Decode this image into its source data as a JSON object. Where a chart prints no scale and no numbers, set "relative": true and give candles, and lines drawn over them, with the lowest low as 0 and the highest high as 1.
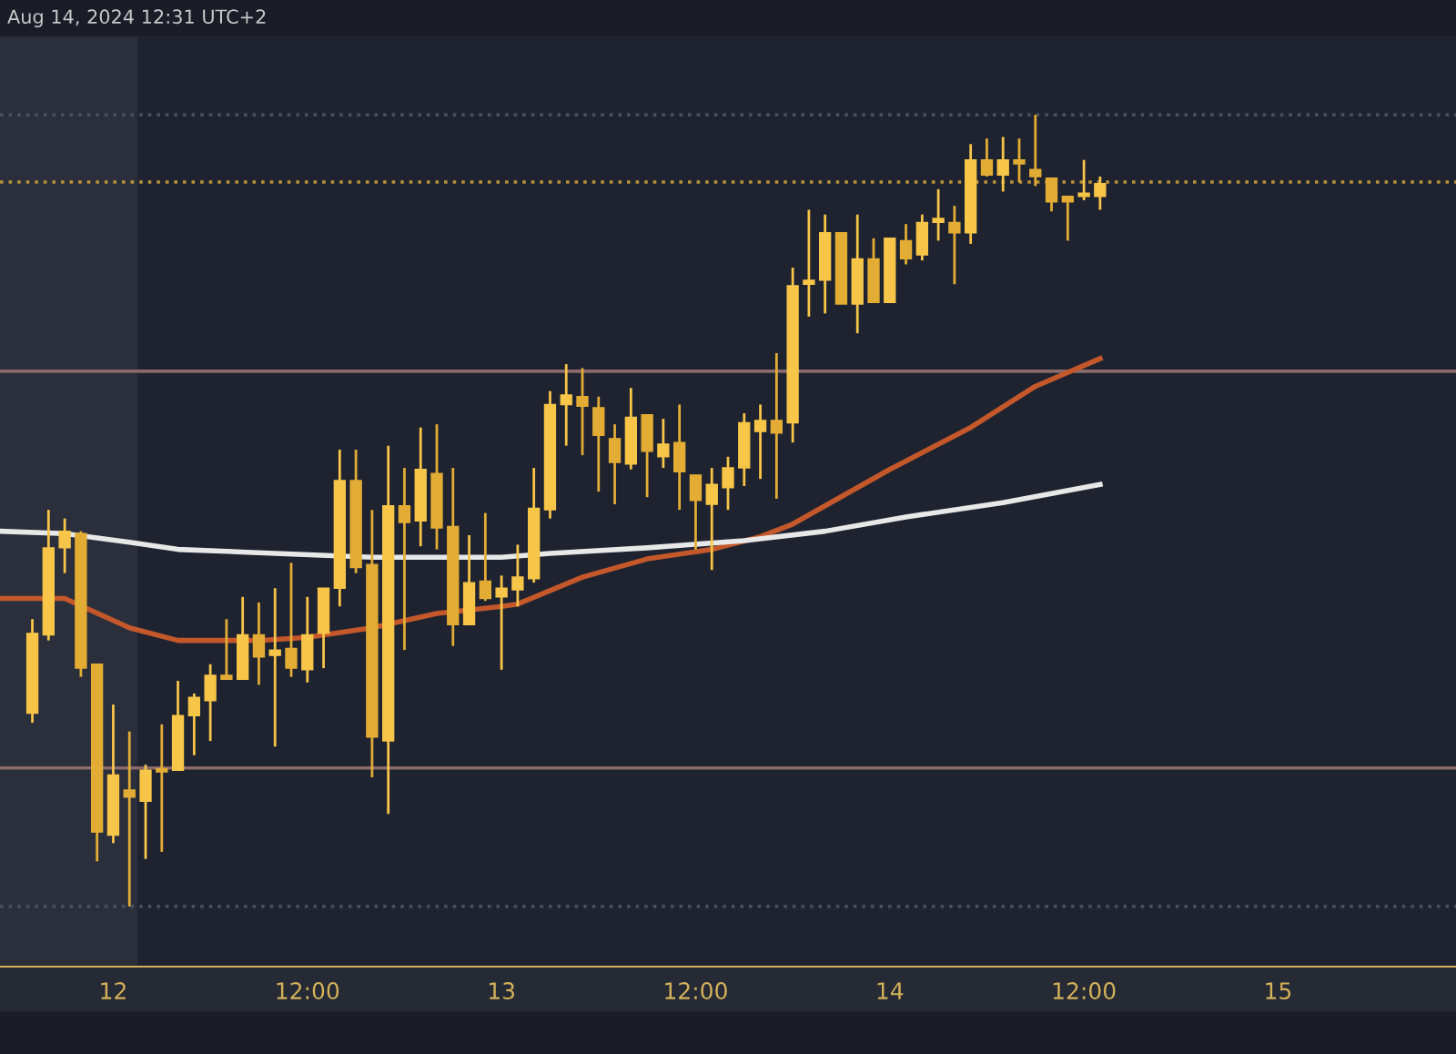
{
  "chart_data": {
    "type": "candlestick",
    "relative": true,
    "colors": [
      "#f7c548",
      "#f7c548",
      "#f7c548",
      "#e3ad35",
      "#e3ad35",
      "#f7c548",
      "#e3ad35",
      "#f7c548",
      "#e3ad35",
      "#f7c548",
      "#f7c548",
      "#f7c548",
      "#e3ad35",
      "#f7c548",
      "#e3ad35",
      "#f7c548",
      "#e3ad35",
      "#f7c548",
      "#f7c548",
      "#f7c548",
      "#e3ad35",
      "#e3ad35",
      "#f7c548",
      "#e3ad35",
      "#f7c548",
      "#e3ad35",
      "#e3ad35",
      "#f7c548",
      "#e3ad35",
      "#f7c548",
      "#f7c548",
      "#f7c548",
      "#f7c548",
      "#f7c548",
      "#e3ad35",
      "#e3ad35",
      "#e3ad35",
      "#f7c548",
      "#e3ad35",
      "#f7c548",
      "#e3ad35",
      "#e3ad35",
      "#f7c548",
      "#f7c548",
      "#f7c548",
      "#f7c548",
      "#e3ad35",
      "#f7c548",
      "#f7c548",
      "#f7c548",
      "#e3ad35",
      "#f7c548",
      "#e3ad35",
      "#f7c548",
      "#e3ad35",
      "#f7c548",
      "#f7c548",
      "#e3ad35",
      "#f7c548",
      "#e3ad35",
      "#f7c548",
      "#e3ad35",
      "#e3ad35",
      "#e3ad35",
      "#e3ad35",
      "#f7c548",
      "#f7c548"
    ],
    "annotations": [
      "Aug 14, 2024 12:31 UTC+2"
    ],
    "x": [
      "2024-08-11T19:00",
      "2024-08-11T20:00",
      "2024-08-11T21:00",
      "2024-08-11T22:00",
      "2024-08-11T23:00",
      "2024-08-12T00:00",
      "2024-08-12T01:00",
      "2024-08-12T02:00",
      "2024-08-12T03:00",
      "2024-08-12T04:00",
      "2024-08-12T05:00",
      "2024-08-12T06:00",
      "2024-08-12T07:00",
      "2024-08-12T08:00",
      "2024-08-12T09:00",
      "2024-08-12T10:00",
      "2024-08-12T11:00",
      "2024-08-12T12:00",
      "2024-08-12T13:00",
      "2024-08-12T14:00",
      "2024-08-12T15:00",
      "2024-08-12T16:00",
      "2024-08-12T17:00",
      "2024-08-12T18:00",
      "2024-08-12T19:00",
      "2024-08-12T20:00",
      "2024-08-12T21:00",
      "2024-08-12T22:00",
      "2024-08-12T23:00",
      "2024-08-13T00:00",
      "2024-08-13T01:00",
      "2024-08-13T02:00",
      "2024-08-13T03:00",
      "2024-08-13T04:00",
      "2024-08-13T05:00",
      "2024-08-13T06:00",
      "2024-08-13T07:00",
      "2024-08-13T08:00",
      "2024-08-13T09:00",
      "2024-08-13T10:00",
      "2024-08-13T11:00",
      "2024-08-13T12:00",
      "2024-08-13T13:00",
      "2024-08-13T14:00",
      "2024-08-13T15:00",
      "2024-08-13T16:00",
      "2024-08-13T17:00",
      "2024-08-13T18:00",
      "2024-08-13T19:00",
      "2024-08-13T20:00",
      "2024-08-13T21:00",
      "2024-08-13T22:00",
      "2024-08-13T23:00",
      "2024-08-14T00:00",
      "2024-08-14T01:00",
      "2024-08-14T02:00",
      "2024-08-14T03:00",
      "2024-08-14T04:00",
      "2024-08-14T05:00",
      "2024-08-14T06:00",
      "2024-08-14T07:00",
      "2024-08-14T08:00",
      "2024-08-14T09:00",
      "2024-08-14T10:00",
      "2024-08-14T11:00",
      "2024-08-14T12:00",
      "2024-08-14T13:00"
    ],
    "ohlc": [
      [
        0.244,
        0.363,
        0.232,
        0.345
      ],
      [
        0.343,
        0.501,
        0.336,
        0.453
      ],
      [
        0.453,
        0.49,
        0.421,
        0.474
      ],
      [
        0.471,
        0.474,
        0.29,
        0.301
      ],
      [
        0.306,
        0.306,
        0.057,
        0.094
      ],
      [
        0.09,
        0.255,
        0.08,
        0.166
      ],
      [
        0.147,
        0.221,
        0,
        0.138
      ],
      [
        0.133,
        0.179,
        0.06,
        0.172
      ],
      [
        0.172,
        0.23,
        0.069,
        0.17
      ],
      [
        0.172,
        0.285,
        0.172,
        0.241
      ],
      [
        0.241,
        0.269,
        0.191,
        0.264
      ],
      [
        0.26,
        0.306,
        0.209,
        0.292
      ],
      [
        0.292,
        0.363,
        0.287,
        0.287
      ],
      [
        0.287,
        0.391,
        0.287,
        0.343
      ],
      [
        0.343,
        0.384,
        0.28,
        0.315
      ],
      [
        0.317,
        0.402,
        0.202,
        0.324
      ],
      [
        0.326,
        0.434,
        0.29,
        0.301
      ],
      [
        0.299,
        0.391,
        0.283,
        0.343
      ],
      [
        0.345,
        0.402,
        0.301,
        0.402
      ],
      [
        0.402,
        0.577,
        0.379,
        0.538
      ],
      [
        0.538,
        0.577,
        0.421,
        0.428
      ],
      [
        0.432,
        0.501,
        0.163,
        0.214
      ],
      [
        0.209,
        0.582,
        0.117,
        0.506
      ],
      [
        0.506,
        0.554,
        0.324,
        0.485
      ],
      [
        0.487,
        0.605,
        0.455,
        0.552
      ],
      [
        0.547,
        0.609,
        0.451,
        0.478
      ],
      [
        0.48,
        0.554,
        0.329,
        0.356
      ],
      [
        0.356,
        0.469,
        0.356,
        0.409
      ],
      [
        0.411,
        0.497,
        0.386,
        0.389
      ],
      [
        0.391,
        0.418,
        0.299,
        0.402
      ],
      [
        0.4,
        0.457,
        0.379,
        0.416
      ],
      [
        0.414,
        0.554,
        0.409,
        0.503
      ],
      [
        0.501,
        0.651,
        0.49,
        0.634
      ],
      [
        0.634,
        0.685,
        0.582,
        0.646
      ],
      [
        0.644,
        0.68,
        0.57,
        0.632
      ],
      [
        0.63,
        0.644,
        0.524,
        0.595
      ],
      [
        0.591,
        0.609,
        0.508,
        0.561
      ],
      [
        0.559,
        0.655,
        0.552,
        0.618
      ],
      [
        0.621,
        0.621,
        0.517,
        0.575
      ],
      [
        0.568,
        0.616,
        0.554,
        0.584
      ],
      [
        0.586,
        0.634,
        0.501,
        0.549
      ],
      [
        0.545,
        0.545,
        0.451,
        0.513
      ],
      [
        0.508,
        0.554,
        0.425,
        0.533
      ],
      [
        0.529,
        0.568,
        0.501,
        0.554
      ],
      [
        0.554,
        0.623,
        0.531,
        0.611
      ],
      [
        0.6,
        0.634,
        0.54,
        0.614
      ],
      [
        0.614,
        0.699,
        0.515,
        0.598
      ],
      [
        0.611,
        0.807,
        0.586,
        0.784
      ],
      [
        0.786,
        0.88,
        0.745,
        0.791
      ],
      [
        0.791,
        0.874,
        0.749,
        0.851
      ],
      [
        0.851,
        0.851,
        0.761,
        0.761
      ],
      [
        0.761,
        0.874,
        0.724,
        0.818
      ],
      [
        0.818,
        0.844,
        0.763,
        0.763
      ],
      [
        0.763,
        0.844,
        0.763,
        0.844
      ],
      [
        0.841,
        0.862,
        0.811,
        0.818
      ],
      [
        0.823,
        0.874,
        0.816,
        0.864
      ],
      [
        0.864,
        0.906,
        0.841,
        0.869
      ],
      [
        0.864,
        0.885,
        0.786,
        0.851
      ],
      [
        0.851,
        0.963,
        0.837,
        0.943
      ],
      [
        0.943,
        0.97,
        0.922,
        0.924
      ],
      [
        0.924,
        0.972,
        0.903,
        0.943
      ],
      [
        0.943,
        0.97,
        0.915,
        0.938
      ],
      [
        0.931,
        1,
        0.91,
        0.922
      ],
      [
        0.92,
        0.92,
        0.878,
        0.89
      ],
      [
        0.897,
        0.897,
        0.841,
        0.89
      ],
      [
        0.897,
        0.943,
        0.892,
        0.899
      ],
      [
        0.897,
        0.922,
        0.88,
        0.913
      ]
    ],
    "series": [
      {
        "type": "line",
        "color": "#c4582b",
        "x": [
          "2024-08-11T17:00",
          "2024-08-11T21:00",
          "2024-08-12T01:00",
          "2024-08-12T04:00",
          "2024-08-12T09:00",
          "2024-08-12T12:00",
          "2024-08-12T16:00",
          "2024-08-12T20:00",
          "2024-08-13T00:00",
          "2024-08-13T01:00",
          "2024-08-13T05:00",
          "2024-08-13T09:00",
          "2024-08-13T13:00",
          "2024-08-13T16:00",
          "2024-08-13T18:00",
          "2024-08-14T00:00",
          "2024-08-14T05:00",
          "2024-08-14T09:00",
          "2024-08-14T13:00"
        ],
        "values": [
          0.389,
          0.389,
          0.352,
          0.336,
          0.336,
          0.34,
          0.352,
          0.37,
          0.379,
          0.382,
          0.416,
          0.439,
          0.451,
          0.467,
          0.483,
          0.552,
          0.605,
          0.657,
          0.692
        ]
      },
      {
        "type": "line",
        "color": "#e8e8e8",
        "x": [
          "2024-08-11T17:00",
          "2024-08-11T21:00",
          "2024-08-12T01:00",
          "2024-08-12T04:00",
          "2024-08-12T10:00",
          "2024-08-12T16:00",
          "2024-08-13T00:00",
          "2024-08-13T03:00",
          "2024-08-13T09:00",
          "2024-08-13T15:00",
          "2024-08-13T20:00",
          "2024-08-14T01:00",
          "2024-08-14T07:00",
          "2024-08-14T13:00"
        ],
        "values": [
          0.474,
          0.471,
          0.46,
          0.451,
          0.446,
          0.441,
          0.441,
          0.446,
          0.453,
          0.462,
          0.474,
          0.492,
          0.51,
          0.533
        ]
      }
    ],
    "ref_lines": [
      {
        "axis": "y",
        "value": 1,
        "color": "#4a4f5c",
        "line_style": "dotted"
      },
      {
        "axis": "y",
        "value": 0.915,
        "color": "#b8913a",
        "line_style": "dotted"
      },
      {
        "axis": "y",
        "value": 0.676,
        "color": "#8a6a6a"
      },
      {
        "axis": "y",
        "value": 0.175,
        "color": "#8a6a6a"
      },
      {
        "axis": "y",
        "value": 0,
        "color": "#4a4f5c",
        "line_style": "dotted"
      }
    ],
    "bands": [
      {
        "axis": "x",
        "from": "2024-08-11T17:00",
        "to": "2024-08-12T01:30",
        "color": "#2b2f3b"
      }
    ],
    "xlim": [
      "2024-08-11T17:00",
      "2024-08-15T11:00"
    ],
    "xticks": [
      {
        "value": "2024-08-12",
        "label": "12"
      },
      {
        "value": "2024-08-12T12:00",
        "label": "12:00"
      },
      {
        "value": "2024-08-13",
        "label": "13"
      },
      {
        "value": "2024-08-13T12:00",
        "label": "12:00"
      },
      {
        "value": "2024-08-14",
        "label": "14"
      },
      {
        "value": "2024-08-14T12:00",
        "label": "12:00"
      },
      {
        "value": "2024-08-15",
        "label": "15"
      }
    ]
  }
}
